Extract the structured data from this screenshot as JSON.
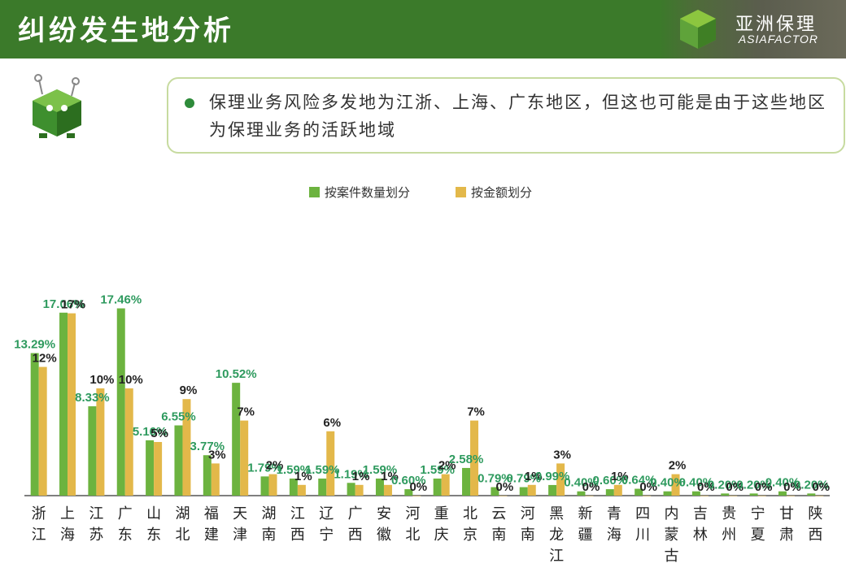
{
  "header": {
    "title": "纠纷发生地分析",
    "logo_text": "亚洲保理",
    "logo_sub": "ASIAFACTOR"
  },
  "callout": {
    "text": "保理业务风险多发地为江浙、上海、广东地区，但这也可能是由于这些地区为保理业务的活跃地域"
  },
  "icons": {
    "mascot": "green-box-mascot-icon",
    "bullet": "green-dot-icon"
  },
  "colors": {
    "header_bg": "#3b7a2a",
    "series_count": "#6cb33f",
    "series_amount": "#e3b84a",
    "label_count": "#2e9a5e",
    "label_amount": "#222222"
  },
  "chart_data": {
    "type": "bar",
    "legend_position": "top-center",
    "grid": false,
    "ylim": [
      0,
      20
    ],
    "categories": [
      "浙江",
      "上海",
      "江苏",
      "广东",
      "山东",
      "湖北",
      "福建",
      "天津",
      "湖南",
      "江西",
      "辽宁",
      "广西",
      "安徽",
      "河北",
      "重庆",
      "北京",
      "云南",
      "河南",
      "黑龙江",
      "新疆",
      "青海",
      "四川",
      "内蒙古",
      "吉林",
      "贵州",
      "宁夏",
      "甘肃",
      "陕西"
    ],
    "series": [
      {
        "name": "按案件数量划分",
        "values": [
          13.29,
          17.06,
          8.33,
          17.46,
          5.16,
          6.55,
          3.77,
          10.52,
          1.79,
          1.59,
          1.59,
          1.19,
          1.59,
          0.6,
          1.59,
          2.58,
          0.79,
          0.79,
          0.99,
          0.4,
          0.6,
          0.64,
          0.4,
          0.4,
          0.2,
          0.2,
          0.4,
          0.2
        ],
        "labels": [
          "13.29%",
          "17.06%",
          "8.33%",
          "17.46%",
          "5.16%",
          "6.55%",
          "3.77%",
          "10.52%",
          "1.79%",
          "1.59%",
          "1.59%",
          "1.19%",
          "1.59%",
          "0.60%",
          "1.59%",
          "2.58%",
          "0.79%",
          "0.79%",
          "0.99%",
          "0.40%",
          "0.60%",
          "0.64%",
          "0.40%",
          "0.40%",
          "0.20%",
          "0.20%",
          "0.40%",
          "0.20%"
        ]
      },
      {
        "name": "按金额划分",
        "values": [
          12,
          17,
          10,
          10,
          5,
          9,
          3,
          7,
          2,
          1,
          6,
          1,
          1,
          0,
          2,
          7,
          0,
          1,
          3,
          0,
          1,
          0,
          2,
          0,
          0,
          0,
          0,
          0
        ],
        "labels": [
          "12%",
          "17%",
          "10%",
          "10%",
          "5%",
          "9%",
          "3%",
          "7%",
          "2%",
          "1%",
          "6%",
          "1%",
          "1%",
          "0%",
          "2%",
          "7%",
          "0%",
          "1%",
          "3%",
          "0%",
          "1%",
          "0%",
          "2%",
          "0%",
          "0%",
          "0%",
          "0%",
          "0%"
        ]
      }
    ]
  }
}
